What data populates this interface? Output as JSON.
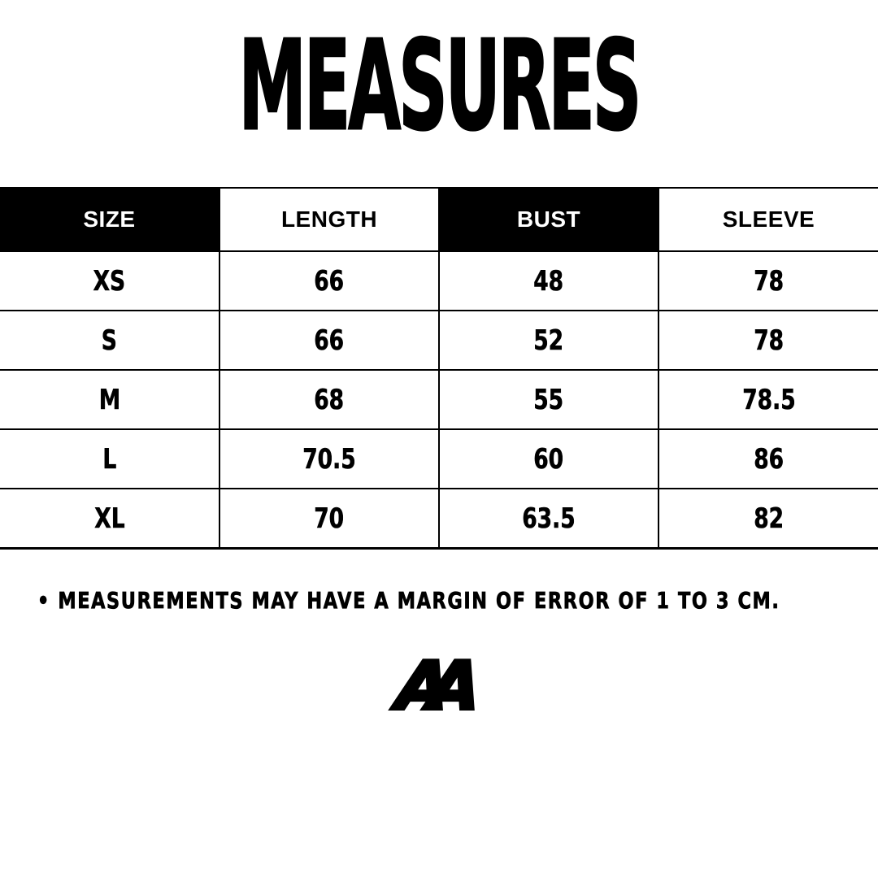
{
  "title": "MEASURES",
  "chart_data": {
    "type": "table",
    "title": "MEASURES",
    "columns": [
      "SIZE",
      "LENGTH",
      "BUST",
      "SLEEVE"
    ],
    "header_fill": [
      "black",
      "white",
      "black",
      "white"
    ],
    "rows": [
      [
        "XS",
        66,
        48,
        78
      ],
      [
        "S",
        66,
        52,
        78
      ],
      [
        "M",
        68,
        55,
        78.5
      ],
      [
        "L",
        70.5,
        60,
        86
      ],
      [
        "XL",
        70,
        63.5,
        82
      ]
    ],
    "units": "cm",
    "footnote": "• MEASUREMENTS MAY HAVE A MARGIN OF ERROR OF 1 TO 3 CM."
  },
  "logo": {
    "text": "AA"
  },
  "colors": {
    "background": "#ffffff",
    "ink": "#000000",
    "header_inverted_bg": "#000000",
    "header_inverted_text": "#ffffff"
  }
}
